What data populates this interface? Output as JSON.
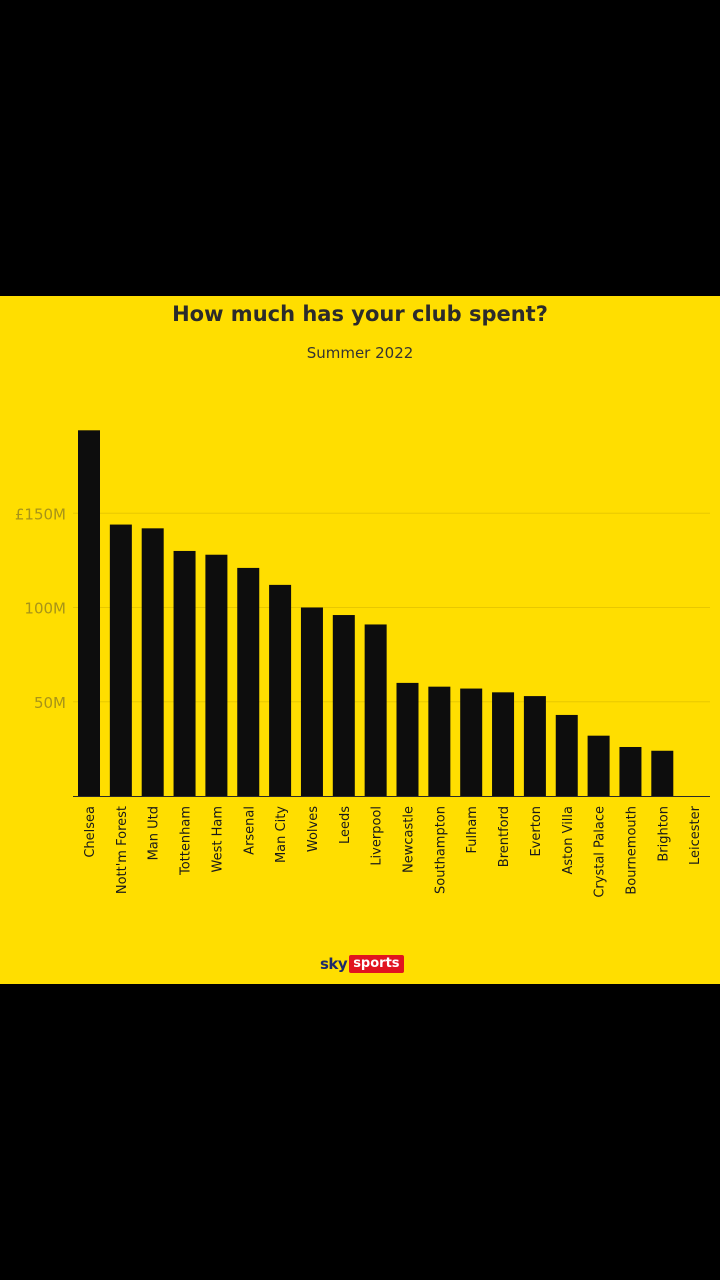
{
  "brand": {
    "sky": "sky",
    "sports": "sports"
  },
  "chart_data": {
    "type": "bar",
    "title": "How much has your club spent?",
    "subtitle": "Summer 2022",
    "xlabel": "",
    "ylabel": "",
    "ylim": [
      0,
      200
    ],
    "yticks": [
      {
        "value": 50,
        "label": "50M"
      },
      {
        "value": 100,
        "label": "100M"
      },
      {
        "value": 150,
        "label": "£150M"
      }
    ],
    "categories": [
      "Chelsea",
      "Nott'm Forest",
      "Man Utd",
      "Tottenham",
      "West Ham",
      "Arsenal",
      "Man City",
      "Wolves",
      "Leeds",
      "Liverpool",
      "Newcastle",
      "Southampton",
      "Fulham",
      "Brentford",
      "Everton",
      "Aston Villa",
      "Crystal Palace",
      "Bournemouth",
      "Brighton",
      "Leicester"
    ],
    "values": [
      194,
      144,
      142,
      130,
      128,
      121,
      112,
      100,
      96,
      91,
      60,
      58,
      57,
      55,
      53,
      43,
      32,
      26,
      24,
      0
    ],
    "grid": true,
    "colors": {
      "bar": "#0d0d0d",
      "background": "#FFDE00",
      "grid": "#E8C800",
      "tick_label": "#A89418"
    }
  }
}
